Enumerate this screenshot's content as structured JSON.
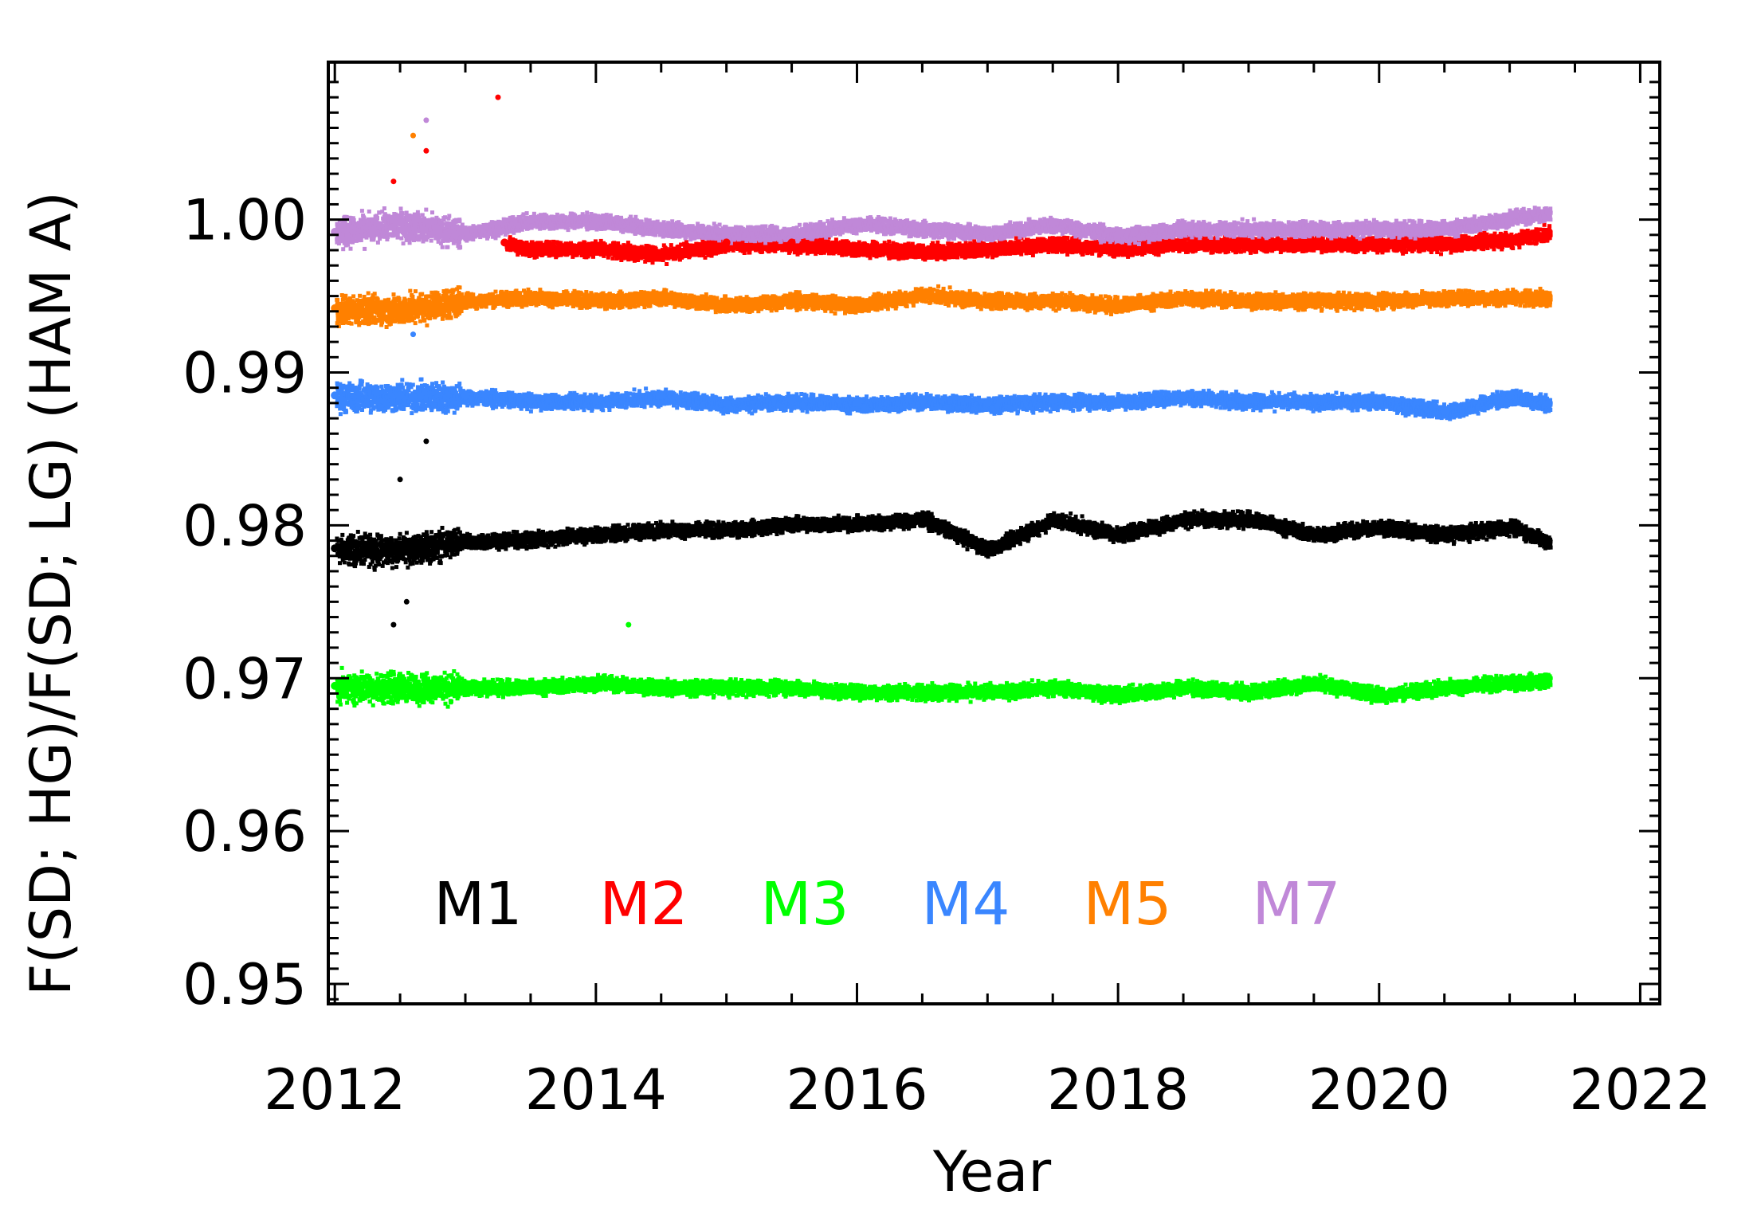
{
  "chart_data": {
    "type": "scatter",
    "title": "",
    "xlabel": "Year",
    "ylabel": "F(SD; HG)/F(SD; LG)  (HAM A)",
    "xlim": [
      2011.95,
      2022.15
    ],
    "ylim": [
      0.9487,
      1.0103
    ],
    "x_ticks": [
      2012,
      2014,
      2016,
      2018,
      2020,
      2022
    ],
    "x_tick_labels": [
      "2012",
      "2014",
      "2016",
      "2018",
      "2020",
      "2022"
    ],
    "y_ticks": [
      0.95,
      0.96,
      0.97,
      0.98,
      0.99,
      1.0
    ],
    "y_tick_labels": [
      "0.95",
      "0.96",
      "0.97",
      "0.98",
      "0.99",
      "1.00"
    ],
    "legend_position": "bottom-left",
    "series": [
      {
        "name": "M1",
        "color": "#000000",
        "x": [
          2012.0,
          2012.5,
          2013.0,
          2013.5,
          2014.0,
          2014.5,
          2015.0,
          2015.5,
          2016.0,
          2016.5,
          2017.0,
          2017.5,
          2018.0,
          2018.5,
          2019.0,
          2019.5,
          2020.0,
          2020.5,
          2021.0,
          2021.3
        ],
        "y": [
          0.9785,
          0.9785,
          0.979,
          0.9792,
          0.9795,
          0.9798,
          0.9798,
          0.9802,
          0.9802,
          0.9805,
          0.9785,
          0.9805,
          0.9795,
          0.9805,
          0.9805,
          0.9795,
          0.98,
          0.9795,
          0.98,
          0.979
        ]
      },
      {
        "name": "M2",
        "color": "#ff0000",
        "x": [
          2013.3,
          2013.5,
          2014.0,
          2014.5,
          2015.0,
          2015.5,
          2016.0,
          2016.5,
          2017.0,
          2017.5,
          2018.0,
          2018.5,
          2019.0,
          2019.5,
          2020.0,
          2020.5,
          2021.0,
          2021.3
        ],
        "y": [
          0.9985,
          0.9982,
          0.9982,
          0.9978,
          0.9985,
          0.9985,
          0.9982,
          0.998,
          0.9982,
          0.9985,
          0.9982,
          0.9985,
          0.9985,
          0.9985,
          0.9985,
          0.9985,
          0.9988,
          0.9992
        ]
      },
      {
        "name": "M3",
        "color": "#00ff00",
        "x": [
          2012.0,
          2012.5,
          2013.0,
          2013.5,
          2014.0,
          2014.5,
          2015.0,
          2015.5,
          2016.0,
          2016.5,
          2017.0,
          2017.5,
          2018.0,
          2018.5,
          2019.0,
          2019.5,
          2020.0,
          2020.5,
          2021.0,
          2021.3
        ],
        "y": [
          0.9695,
          0.9695,
          0.9695,
          0.9695,
          0.9698,
          0.9695,
          0.9695,
          0.9695,
          0.9692,
          0.9692,
          0.9692,
          0.9695,
          0.969,
          0.9695,
          0.9692,
          0.9698,
          0.969,
          0.9695,
          0.9698,
          0.97
        ]
      },
      {
        "name": "M4",
        "color": "#3a86ff",
        "x": [
          2012.0,
          2012.5,
          2013.0,
          2013.5,
          2014.0,
          2014.5,
          2015.0,
          2015.5,
          2016.0,
          2016.5,
          2017.0,
          2017.5,
          2018.0,
          2018.5,
          2019.0,
          2019.5,
          2020.0,
          2020.5,
          2021.0,
          2021.3
        ],
        "y": [
          0.9885,
          0.9885,
          0.9885,
          0.9882,
          0.9882,
          0.9885,
          0.988,
          0.9882,
          0.988,
          0.9882,
          0.988,
          0.9882,
          0.9882,
          0.9885,
          0.9882,
          0.9882,
          0.9882,
          0.9875,
          0.9885,
          0.988
        ]
      },
      {
        "name": "M5",
        "color": "#ff8000",
        "x": [
          2012.0,
          2012.5,
          2013.0,
          2013.5,
          2014.0,
          2014.5,
          2015.0,
          2015.5,
          2016.0,
          2016.5,
          2017.0,
          2017.5,
          2018.0,
          2018.5,
          2019.0,
          2019.5,
          2020.0,
          2020.5,
          2021.0,
          2021.3
        ],
        "y": [
          0.9942,
          0.9942,
          0.9948,
          0.995,
          0.9948,
          0.995,
          0.9945,
          0.9948,
          0.9945,
          0.9952,
          0.9948,
          0.9948,
          0.9945,
          0.995,
          0.9948,
          0.9948,
          0.9948,
          0.995,
          0.995,
          0.995
        ]
      },
      {
        "name": "M7",
        "color": "#c088d8",
        "x": [
          2012.0,
          2012.5,
          2013.0,
          2013.5,
          2014.0,
          2014.5,
          2015.0,
          2015.5,
          2016.0,
          2016.5,
          2017.0,
          2017.5,
          2018.0,
          2018.5,
          2019.0,
          2019.5,
          2020.0,
          2020.5,
          2021.0,
          2021.3
        ],
        "y": [
          0.9992,
          0.9998,
          0.9992,
          1.0,
          1.0,
          0.9995,
          0.9992,
          0.9992,
          0.9998,
          0.9995,
          0.9992,
          0.9998,
          0.999,
          0.9995,
          0.9995,
          0.9995,
          0.9995,
          0.9995,
          1.0002,
          1.0005
        ]
      }
    ],
    "outliers": [
      {
        "series": "M2",
        "x": 2013.25,
        "y": 1.008
      },
      {
        "series": "M2",
        "x": 2012.7,
        "y": 1.0045
      },
      {
        "series": "M2",
        "x": 2012.45,
        "y": 1.0025
      },
      {
        "series": "M5",
        "x": 2012.6,
        "y": 1.0055
      },
      {
        "series": "M7",
        "x": 2012.7,
        "y": 1.0065
      },
      {
        "series": "M1",
        "x": 2012.7,
        "y": 0.9855
      },
      {
        "series": "M1",
        "x": 2012.5,
        "y": 0.983
      },
      {
        "series": "M1",
        "x": 2012.55,
        "y": 0.975
      },
      {
        "series": "M1",
        "x": 2012.45,
        "y": 0.9735
      },
      {
        "series": "M3",
        "x": 2014.25,
        "y": 0.9735
      },
      {
        "series": "M4",
        "x": 2012.6,
        "y": 0.9925
      }
    ]
  }
}
